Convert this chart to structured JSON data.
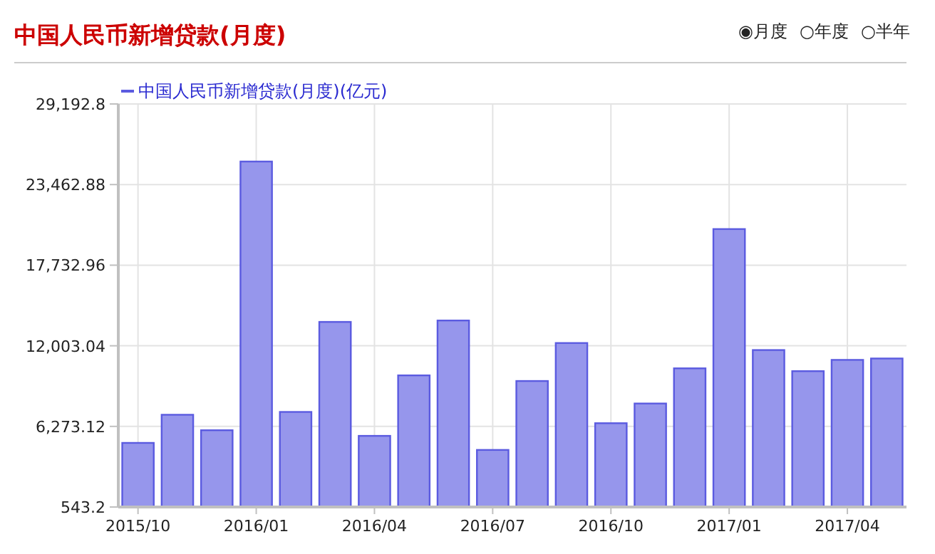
{
  "chart_data": {
    "type": "bar",
    "title": "中国人民币新增贷款(月度)",
    "annotations": [
      "◉月度",
      "○年度",
      "○半年"
    ],
    "categories": [
      "2015/10",
      null,
      null,
      "2016/01",
      null,
      null,
      "2016/04",
      null,
      null,
      "2016/07",
      null,
      null,
      "2016/10",
      null,
      null,
      "2017/01",
      null,
      null,
      "2017/04",
      null
    ],
    "series": [
      {
        "name": "中国人民币新增贷款(月度)(亿元)",
        "color": "#9696ec",
        "values": [
          5100,
          7100,
          6000,
          25100,
          7300,
          13700,
          5600,
          9900,
          13800,
          4600,
          9500,
          12200,
          6500,
          7900,
          10400,
          20300,
          11700,
          10200,
          11000,
          11100
        ]
      }
    ],
    "ylim": [
      543.2,
      29192.8
    ],
    "yticks": [
      {
        "value": 543.2,
        "label": "543.2"
      },
      {
        "value": 6273.12,
        "label": "6,273.12"
      },
      {
        "value": 12003.04,
        "label": "12,003.04"
      },
      {
        "value": 17732.96,
        "label": "17,732.96"
      },
      {
        "value": 23462.88,
        "label": "23,462.88"
      },
      {
        "value": 29192.8,
        "label": "29,192.8"
      }
    ],
    "grid": true,
    "legend": "top left"
  }
}
